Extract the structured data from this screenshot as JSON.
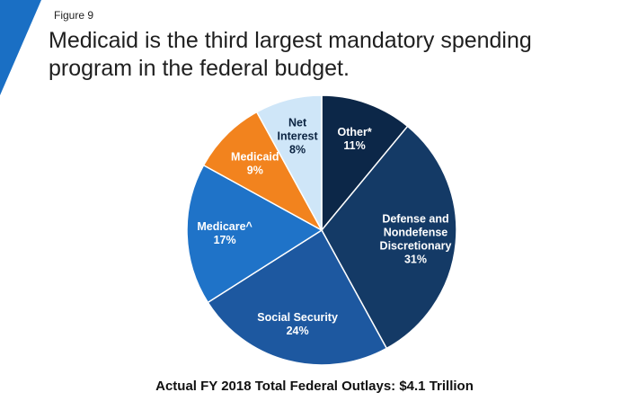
{
  "figure_label": "Figure 9",
  "title": "Medicaid is the third largest mandatory spending program in the federal budget.",
  "colors": {
    "corner_accent": "#1a6fc4",
    "text_light": "#ffffff",
    "text_dark": "#0b2341"
  },
  "chart_data": {
    "type": "pie",
    "title": "Actual FY 2018 Total Federal Outlays: $4.1 Trillion",
    "slices": [
      {
        "label": "Other*",
        "percent": "11%",
        "value": 11,
        "color": "#0c2748",
        "text_color": "#ffffff"
      },
      {
        "label": "Defense and Nondefense Discretionary",
        "lines": [
          "Defense and",
          "Nondefense",
          "Discretionary"
        ],
        "percent": "31%",
        "value": 31,
        "color": "#143a66",
        "text_color": "#ffffff"
      },
      {
        "label": "Social Security",
        "percent": "24%",
        "value": 24,
        "color": "#1d58a0",
        "text_color": "#ffffff"
      },
      {
        "label": "Medicare^",
        "percent": "17%",
        "value": 17,
        "color": "#1f73c8",
        "text_color": "#ffffff"
      },
      {
        "label": "Medicaid",
        "percent": "9%",
        "value": 9,
        "color": "#f2831e",
        "text_color": "#ffffff"
      },
      {
        "label": "Net Interest",
        "lines": [
          "Net",
          "Interest"
        ],
        "percent": "8%",
        "value": 8,
        "color": "#cfe6f8",
        "text_color": "#0b2341"
      }
    ]
  }
}
